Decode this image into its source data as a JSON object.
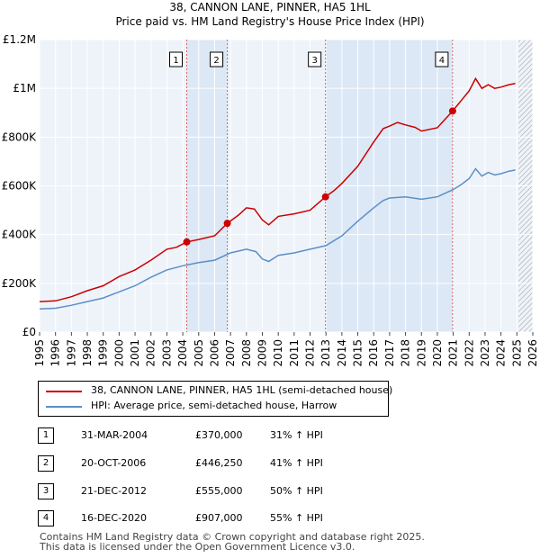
{
  "chart_data": {
    "type": "line",
    "title": "38, CANNON LANE, PINNER, HA5 1HL",
    "subtitle": "Price paid vs. HM Land Registry's House Price Index (HPI)",
    "xlabel": "",
    "ylabel": "",
    "xlim": [
      1995,
      2026
    ],
    "ylim": [
      0,
      1200000
    ],
    "x_ticks": [
      "1995",
      "1996",
      "1997",
      "1998",
      "1999",
      "2000",
      "2001",
      "2002",
      "2003",
      "2004",
      "2005",
      "2006",
      "2007",
      "2008",
      "2009",
      "2010",
      "2011",
      "2012",
      "2013",
      "2014",
      "2015",
      "2016",
      "2017",
      "2018",
      "2019",
      "2020",
      "2021",
      "2022",
      "2023",
      "2024",
      "2025",
      "2026"
    ],
    "y_ticks": [
      {
        "value": 0,
        "label": "£0"
      },
      {
        "value": 200000,
        "label": "£200K"
      },
      {
        "value": 400000,
        "label": "£400K"
      },
      {
        "value": 600000,
        "label": "£600K"
      },
      {
        "value": 800000,
        "label": "£800K"
      },
      {
        "value": 1000000,
        "label": "£1M"
      },
      {
        "value": 1200000,
        "label": "£1.2M"
      }
    ],
    "colors": {
      "property": "#cc0000",
      "hpi": "#5b8fc7",
      "shade": "#dce8f5",
      "grid": "#ffffff"
    },
    "series": [
      {
        "name": "38, CANNON LANE, PINNER, HA5 1HL (semi-detached house)",
        "color": "#cc0000",
        "points": [
          [
            1995.0,
            125000
          ],
          [
            1996.0,
            128000
          ],
          [
            1997.0,
            145000
          ],
          [
            1998.0,
            170000
          ],
          [
            1999.0,
            190000
          ],
          [
            2000.0,
            228000
          ],
          [
            2001.0,
            255000
          ],
          [
            2002.0,
            295000
          ],
          [
            2003.0,
            340000
          ],
          [
            2003.6,
            348000
          ],
          [
            2004.25,
            370000
          ],
          [
            2005.0,
            380000
          ],
          [
            2006.0,
            395000
          ],
          [
            2006.8,
            446250
          ],
          [
            2007.5,
            480000
          ],
          [
            2008.0,
            510000
          ],
          [
            2008.5,
            505000
          ],
          [
            2009.0,
            460000
          ],
          [
            2009.4,
            440000
          ],
          [
            2010.0,
            475000
          ],
          [
            2011.0,
            485000
          ],
          [
            2012.0,
            500000
          ],
          [
            2012.97,
            555000
          ],
          [
            2013.5,
            580000
          ],
          [
            2014.0,
            610000
          ],
          [
            2015.0,
            680000
          ],
          [
            2016.0,
            780000
          ],
          [
            2016.6,
            835000
          ],
          [
            2017.0,
            845000
          ],
          [
            2017.5,
            860000
          ],
          [
            2018.0,
            850000
          ],
          [
            2018.6,
            840000
          ],
          [
            2019.0,
            825000
          ],
          [
            2020.0,
            838000
          ],
          [
            2020.96,
            907000
          ],
          [
            2021.5,
            950000
          ],
          [
            2022.0,
            990000
          ],
          [
            2022.4,
            1040000
          ],
          [
            2022.8,
            1000000
          ],
          [
            2023.2,
            1015000
          ],
          [
            2023.6,
            1000000
          ],
          [
            2024.0,
            1005000
          ],
          [
            2024.5,
            1015000
          ],
          [
            2024.9,
            1020000
          ]
        ]
      },
      {
        "name": "HPI: Average price, semi-detached house, Harrow",
        "color": "#5b8fc7",
        "points": [
          [
            1995.0,
            95000
          ],
          [
            1996.0,
            98000
          ],
          [
            1997.0,
            110000
          ],
          [
            1998.0,
            125000
          ],
          [
            1999.0,
            140000
          ],
          [
            2000.0,
            165000
          ],
          [
            2001.0,
            190000
          ],
          [
            2002.0,
            225000
          ],
          [
            2003.0,
            255000
          ],
          [
            2004.0,
            272000
          ],
          [
            2005.0,
            285000
          ],
          [
            2006.0,
            295000
          ],
          [
            2007.0,
            325000
          ],
          [
            2008.0,
            340000
          ],
          [
            2008.6,
            330000
          ],
          [
            2009.0,
            300000
          ],
          [
            2009.4,
            290000
          ],
          [
            2010.0,
            315000
          ],
          [
            2011.0,
            325000
          ],
          [
            2012.0,
            340000
          ],
          [
            2013.0,
            355000
          ],
          [
            2014.0,
            395000
          ],
          [
            2015.0,
            455000
          ],
          [
            2016.0,
            510000
          ],
          [
            2016.6,
            540000
          ],
          [
            2017.0,
            550000
          ],
          [
            2018.0,
            555000
          ],
          [
            2019.0,
            545000
          ],
          [
            2020.0,
            555000
          ],
          [
            2021.0,
            585000
          ],
          [
            2021.5,
            605000
          ],
          [
            2022.0,
            630000
          ],
          [
            2022.4,
            670000
          ],
          [
            2022.8,
            640000
          ],
          [
            2023.2,
            655000
          ],
          [
            2023.6,
            645000
          ],
          [
            2024.0,
            650000
          ],
          [
            2024.5,
            660000
          ],
          [
            2024.9,
            665000
          ]
        ]
      }
    ],
    "sales": [
      {
        "label": "1",
        "x": 2004.25,
        "value": 370000,
        "date": "31-MAR-2004",
        "price": "£370,000",
        "hpi_change": "31% ↑ HPI"
      },
      {
        "label": "2",
        "x": 2006.8,
        "value": 446250,
        "date": "20-OCT-2006",
        "price": "£446,250",
        "hpi_change": "41% ↑ HPI"
      },
      {
        "label": "3",
        "x": 2012.97,
        "value": 555000,
        "date": "21-DEC-2012",
        "price": "£555,000",
        "hpi_change": "50% ↑ HPI"
      },
      {
        "label": "4",
        "x": 2020.96,
        "value": 907000,
        "date": "16-DEC-2020",
        "price": "£907,000",
        "hpi_change": "55% ↑ HPI"
      }
    ],
    "shaded_ranges": [
      [
        2004.25,
        2006.8
      ],
      [
        2012.97,
        2020.96
      ]
    ],
    "hatch_from": 2025.1
  },
  "legend": {
    "property_label": "38, CANNON LANE, PINNER, HA5 1HL (semi-detached house)",
    "hpi_label": "HPI: Average price, semi-detached house, Harrow"
  },
  "footer": {
    "line1": "Contains HM Land Registry data © Crown copyright and database right 2025.",
    "line2": "This data is licensed under the Open Government Licence v3.0."
  }
}
